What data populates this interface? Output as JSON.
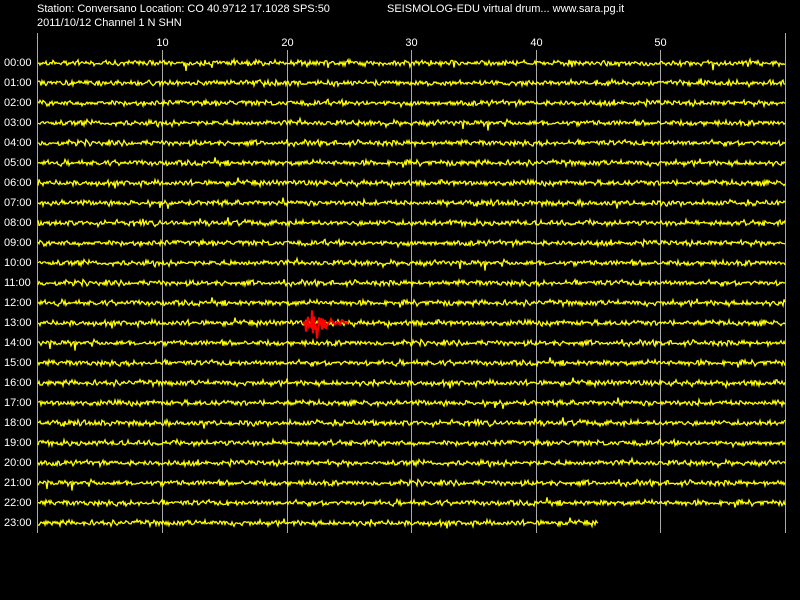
{
  "header": {
    "station": "Station: Conversano Location: CO 40.9712 17.1028 SPS:50",
    "app": "SEISMOLOG-EDU virtual drum... www.sara.pg.it",
    "date_channel": "2011/10/12  Channel 1 N SHN"
  },
  "x_axis": {
    "ticks": [
      10,
      20,
      30,
      40,
      50
    ]
  },
  "rows": [
    "00:00",
    "01:00",
    "02:00",
    "03:00",
    "04:00",
    "05:00",
    "06:00",
    "07:00",
    "08:00",
    "09:00",
    "10:00",
    "11:00",
    "12:00",
    "13:00",
    "14:00",
    "15:00",
    "16:00",
    "17:00",
    "18:00",
    "19:00",
    "20:00",
    "21:00",
    "22:00",
    "23:00"
  ]
}
